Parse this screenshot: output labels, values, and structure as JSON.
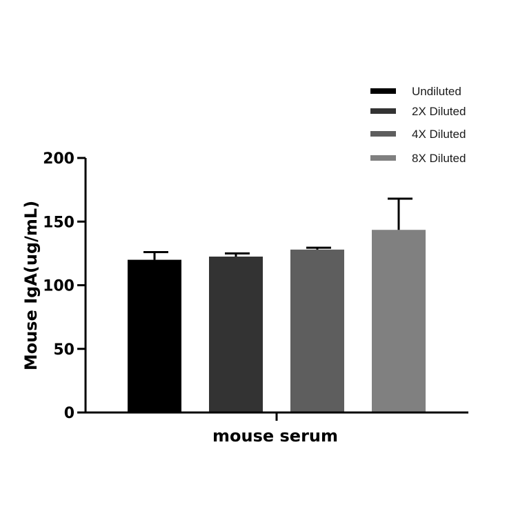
{
  "chart_data": {
    "type": "bar",
    "title": "",
    "xlabel": "mouse serum",
    "ylabel": "Mouse IgA(ug/mL)",
    "ylim": [
      0,
      200
    ],
    "yticks": [
      0,
      50,
      100,
      150,
      200
    ],
    "grid": false,
    "legend_position": "top-right",
    "categories": [
      "mouse serum"
    ],
    "series": [
      {
        "name": "Undiluted",
        "values": [
          120
        ],
        "error": [
          6
        ],
        "color": "#000000"
      },
      {
        "name": "2X Diluted",
        "values": [
          122.5
        ],
        "error": [
          2.5
        ],
        "color": "#333333"
      },
      {
        "name": "4X Diluted",
        "values": [
          128
        ],
        "error": [
          1.5
        ],
        "color": "#5e5e5e"
      },
      {
        "name": "8X Diluted",
        "values": [
          143.5
        ],
        "error": [
          24.5
        ],
        "color": "#808080"
      }
    ]
  }
}
